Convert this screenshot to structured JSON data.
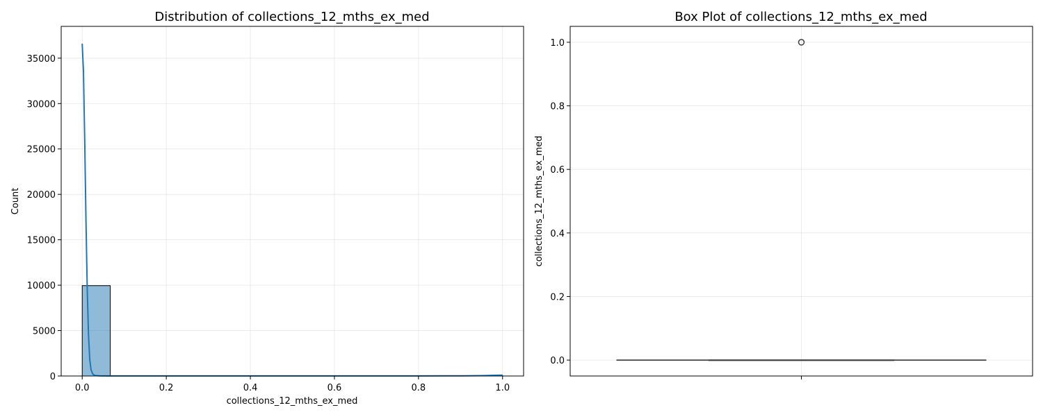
{
  "chart_data": [
    {
      "type": "bar",
      "title": "Distribution of collections_12_mths_ex_med",
      "xlabel": "collections_12_mths_ex_med",
      "ylabel": "Count",
      "xlim": [
        -0.05,
        1.05
      ],
      "ylim": [
        0,
        38500
      ],
      "xticks": [
        0.0,
        0.2,
        0.4,
        0.6,
        0.8,
        1.0
      ],
      "xtick_labels": [
        "0.0",
        "0.2",
        "0.4",
        "0.6",
        "0.8",
        "1.0"
      ],
      "yticks": [
        0,
        5000,
        10000,
        15000,
        20000,
        25000,
        30000,
        35000
      ],
      "ytick_labels": [
        "0",
        "5000",
        "10000",
        "15000",
        "20000",
        "25000",
        "30000",
        "35000"
      ],
      "grid": true,
      "bins": [
        {
          "x0": 0.0,
          "x1": 0.0667,
          "count": 9950
        },
        {
          "x0": 0.9333,
          "x1": 1.0,
          "count": 50
        }
      ],
      "kde": {
        "x": [
          0.0,
          0.003,
          0.006,
          0.009,
          0.012,
          0.015,
          0.018,
          0.021,
          0.025,
          0.03,
          0.04,
          0.06,
          0.1,
          0.2,
          0.4,
          0.6,
          0.8,
          0.9,
          0.95,
          0.98,
          1.0
        ],
        "y": [
          36600,
          33500,
          25800,
          17000,
          9500,
          4500,
          1800,
          700,
          220,
          60,
          20,
          10,
          10,
          10,
          10,
          10,
          10,
          20,
          40,
          80,
          100
        ]
      },
      "bar_color": "#1f77b4",
      "line_color": "#1f77b4"
    },
    {
      "type": "box",
      "title": "Box Plot of collections_12_mths_ex_med",
      "xlabel": "",
      "ylabel": "collections_12_mths_ex_med",
      "ylim": [
        -0.05,
        1.05
      ],
      "yticks": [
        0.0,
        0.2,
        0.4,
        0.6,
        0.8,
        1.0
      ],
      "ytick_labels": [
        "0.0",
        "0.2",
        "0.4",
        "0.6",
        "0.8",
        "1.0"
      ],
      "grid": true,
      "box": {
        "min": 0.0,
        "q1": 0.0,
        "median": 0.0,
        "q3": 0.0,
        "max": 0.0
      },
      "outliers": [
        1.0
      ]
    }
  ]
}
